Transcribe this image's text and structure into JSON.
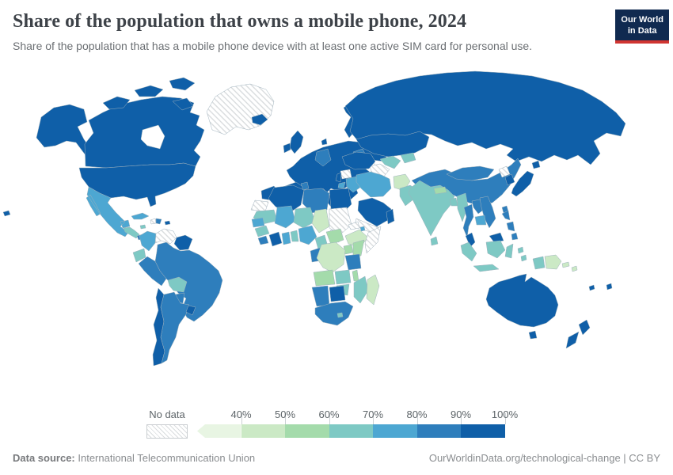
{
  "header": {
    "title": "Share of the population that owns a mobile phone, 2024",
    "subtitle": "Share of the population that has a mobile phone device with at least one active SIM card for personal use.",
    "logo": {
      "line1": "Our World",
      "line2": "in Data",
      "bg_color": "#102a50",
      "bar_color": "#d03531"
    }
  },
  "legend": {
    "no_data_label": "No data",
    "open_low_end_arrow": true,
    "bins": [
      {
        "range": "<40%",
        "color": "#e8f5e3",
        "tick": "40%"
      },
      {
        "range": "40-50%",
        "color": "#cbe9c5",
        "tick": "50%"
      },
      {
        "range": "50-60%",
        "color": "#a4dbab",
        "tick": "60%"
      },
      {
        "range": "60-70%",
        "color": "#7ec9c4",
        "tick": "70%"
      },
      {
        "range": "70-80%",
        "color": "#4da7d2",
        "tick": "80%"
      },
      {
        "range": "80-90%",
        "color": "#2e7ebc",
        "tick": "90%"
      },
      {
        "range": "90-100%",
        "color": "#0f5fa8",
        "tick": "100%"
      }
    ]
  },
  "chart_data": {
    "type": "choropleth_map",
    "title": "Share of the population that owns a mobile phone, 2024",
    "subtitle": "Share of the population that has a mobile phone device with at least one active SIM card for personal use.",
    "year": "2024",
    "unit": "% of population",
    "source": "International Telecommunication Union",
    "legend_bins": [
      "<40%",
      "40-50%",
      "50-60%",
      "60-70%",
      "70-80%",
      "80-90%",
      "90-100%",
      "No data"
    ],
    "regions": [
      {
        "name": "United States",
        "bin": "90-100%"
      },
      {
        "name": "Canada",
        "bin": "90-100%"
      },
      {
        "name": "Iceland",
        "bin": "90-100%"
      },
      {
        "name": "United Kingdom",
        "bin": "90-100%"
      },
      {
        "name": "Ireland",
        "bin": "90-100%"
      },
      {
        "name": "Norway",
        "bin": "90-100%"
      },
      {
        "name": "Sweden",
        "bin": "90-100%"
      },
      {
        "name": "Finland",
        "bin": "90-100%"
      },
      {
        "name": "France",
        "bin": "90-100%"
      },
      {
        "name": "Spain",
        "bin": "90-100%"
      },
      {
        "name": "Portugal",
        "bin": "90-100%"
      },
      {
        "name": "Italy",
        "bin": "90-100%"
      },
      {
        "name": "Poland",
        "bin": "90-100%"
      },
      {
        "name": "Ukraine",
        "bin": "90-100%"
      },
      {
        "name": "Greece",
        "bin": "90-100%"
      },
      {
        "name": "Russia",
        "bin": "90-100%"
      },
      {
        "name": "Kazakhstan",
        "bin": "90-100%"
      },
      {
        "name": "Turkey",
        "bin": "90-100%"
      },
      {
        "name": "Saudi Arabia",
        "bin": "90-100%"
      },
      {
        "name": "Oman",
        "bin": "90-100%"
      },
      {
        "name": "Morocco",
        "bin": "90-100%"
      },
      {
        "name": "Algeria",
        "bin": "90-100%"
      },
      {
        "name": "Egypt",
        "bin": "90-100%"
      },
      {
        "name": "Cote d'Ivoire",
        "bin": "90-100%"
      },
      {
        "name": "Botswana",
        "bin": "90-100%"
      },
      {
        "name": "Japan",
        "bin": "90-100%"
      },
      {
        "name": "South Korea",
        "bin": "90-100%"
      },
      {
        "name": "Malaysia",
        "bin": "90-100%"
      },
      {
        "name": "Australia",
        "bin": "90-100%"
      },
      {
        "name": "New Zealand",
        "bin": "90-100%"
      },
      {
        "name": "Chile",
        "bin": "90-100%"
      },
      {
        "name": "Uruguay",
        "bin": "90-100%"
      },
      {
        "name": "Guyana",
        "bin": "90-100%"
      },
      {
        "name": "Panama",
        "bin": "90-100%"
      },
      {
        "name": "Fiji",
        "bin": "90-100%"
      },
      {
        "name": "Germany",
        "bin": "80-90%"
      },
      {
        "name": "Brazil",
        "bin": "80-90%"
      },
      {
        "name": "Peru",
        "bin": "80-90%"
      },
      {
        "name": "Argentina",
        "bin": "80-90%"
      },
      {
        "name": "Paraguay",
        "bin": "80-90%"
      },
      {
        "name": "Dominican Republic",
        "bin": "80-90%"
      },
      {
        "name": "China",
        "bin": "80-90%"
      },
      {
        "name": "Mongolia",
        "bin": "80-90%"
      },
      {
        "name": "Thailand",
        "bin": "80-90%"
      },
      {
        "name": "Vietnam",
        "bin": "80-90%"
      },
      {
        "name": "Laos",
        "bin": "80-90%"
      },
      {
        "name": "Philippines",
        "bin": "80-90%"
      },
      {
        "name": "Tunisia",
        "bin": "80-90%"
      },
      {
        "name": "Libya",
        "bin": "80-90%"
      },
      {
        "name": "Gabon",
        "bin": "80-90%"
      },
      {
        "name": "Sierra Leone",
        "bin": "80-90%"
      },
      {
        "name": "Tanzania",
        "bin": "80-90%"
      },
      {
        "name": "Namibia",
        "bin": "80-90%"
      },
      {
        "name": "South Africa",
        "bin": "80-90%"
      },
      {
        "name": "Mexico",
        "bin": "70-80%"
      },
      {
        "name": "Colombia",
        "bin": "70-80%"
      },
      {
        "name": "Cuba",
        "bin": "70-80%"
      },
      {
        "name": "Iran",
        "bin": "70-80%"
      },
      {
        "name": "Iraq",
        "bin": "70-80%"
      },
      {
        "name": "Mali",
        "bin": "70-80%"
      },
      {
        "name": "Senegal",
        "bin": "70-80%"
      },
      {
        "name": "Ghana",
        "bin": "70-80%"
      },
      {
        "name": "Nigeria",
        "bin": "70-80%"
      },
      {
        "name": "Cambodia",
        "bin": "70-80%"
      },
      {
        "name": "India",
        "bin": "60-70%"
      },
      {
        "name": "Pakistan",
        "bin": "60-70%"
      },
      {
        "name": "Bangladesh",
        "bin": "60-70%"
      },
      {
        "name": "Sri Lanka",
        "bin": "60-70%"
      },
      {
        "name": "Myanmar",
        "bin": "60-70%"
      },
      {
        "name": "Indonesia",
        "bin": "60-70%"
      },
      {
        "name": "Uzbekistan",
        "bin": "60-70%"
      },
      {
        "name": "Ecuador",
        "bin": "60-70%"
      },
      {
        "name": "Bolivia",
        "bin": "60-70%"
      },
      {
        "name": "Guatemala",
        "bin": "60-70%"
      },
      {
        "name": "Honduras",
        "bin": "60-70%"
      },
      {
        "name": "Nicaragua",
        "bin": "60-70%"
      },
      {
        "name": "Mauritania",
        "bin": "60-70%"
      },
      {
        "name": "Niger",
        "bin": "60-70%"
      },
      {
        "name": "Guinea",
        "bin": "60-70%"
      },
      {
        "name": "Cameroon",
        "bin": "60-70%"
      },
      {
        "name": "Zambia",
        "bin": "60-70%"
      },
      {
        "name": "Zimbabwe",
        "bin": "60-70%"
      },
      {
        "name": "Mozambique",
        "bin": "60-70%"
      },
      {
        "name": "Kenya",
        "bin": "50-60%"
      },
      {
        "name": "Uganda",
        "bin": "50-60%"
      },
      {
        "name": "Angola",
        "bin": "50-60%"
      },
      {
        "name": "Malawi",
        "bin": "50-60%"
      },
      {
        "name": "Central African Republic",
        "bin": "50-60%"
      },
      {
        "name": "Nepal",
        "bin": "50-60%"
      },
      {
        "name": "Afghanistan",
        "bin": "40-50%"
      },
      {
        "name": "Chad",
        "bin": "40-50%"
      },
      {
        "name": "Ethiopia",
        "bin": "40-50%"
      },
      {
        "name": "Democratic Republic of Congo",
        "bin": "40-50%"
      },
      {
        "name": "Madagascar",
        "bin": "40-50%"
      },
      {
        "name": "Papua New Guinea",
        "bin": "40-50%"
      },
      {
        "name": "Greenland",
        "bin": "No data"
      },
      {
        "name": "Venezuela",
        "bin": "No data"
      },
      {
        "name": "Haiti",
        "bin": "No data"
      },
      {
        "name": "Western Sahara",
        "bin": "No data"
      },
      {
        "name": "Sudan",
        "bin": "No data"
      },
      {
        "name": "South Sudan",
        "bin": "No data"
      },
      {
        "name": "Somalia",
        "bin": "No data"
      },
      {
        "name": "Eritrea",
        "bin": "No data"
      },
      {
        "name": "Yemen",
        "bin": "No data"
      },
      {
        "name": "Syria",
        "bin": "No data"
      },
      {
        "name": "Turkmenistan",
        "bin": "No data"
      },
      {
        "name": "North Korea",
        "bin": "No data"
      }
    ]
  },
  "footer": {
    "datasource_label": "Data source:",
    "datasource": "International Telecommunication Union",
    "right_text": "OurWorldinData.org/technological-change | CC BY"
  }
}
